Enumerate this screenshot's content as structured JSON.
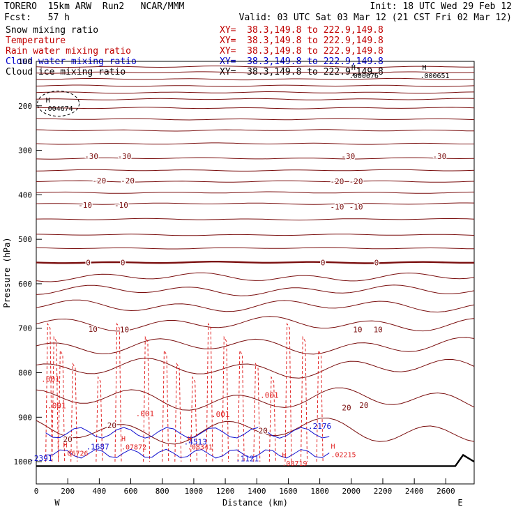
{
  "header": {
    "model": "TORERO  15km ARW  Run2   NCAR/MMM",
    "init": "Init: 18 UTC Wed 29 Feb 12",
    "fcst": "Fcst:   57 h",
    "valid": "Valid: 03 UTC Sat 03 Mar 12 (21 CST Fri 02 Mar 12)"
  },
  "fields": [
    {
      "name": "Snow mixing ratio",
      "xy": "XY=  38.3,149.8 to 222.9,149.8",
      "color": "#000000"
    },
    {
      "name": "Temperature",
      "xy": "XY=  38.3,149.8 to 222.9,149.8",
      "color": "#c00000"
    },
    {
      "name": "Rain water mixing ratio",
      "xy": "XY=  38.3,149.8 to 222.9,149.8",
      "color": "#c00000"
    },
    {
      "name": "Cloud water mixing ratio",
      "xy": "XY=  38.3,149.8 to 222.9,149.8",
      "color": "#0000cc"
    },
    {
      "name": "Cloud ice mixing ratio",
      "xy": "XY=  38.3,149.8 to 222.9,149.8",
      "color": "#000000"
    }
  ],
  "colors": {
    "temp": "#7a0e0e",
    "rain": "#e02020",
    "cloud": "#1010d0",
    "snow": "#000000"
  },
  "chart_data": {
    "type": "cross-section contour",
    "xlabel": "Distance (km)",
    "ylabel": "Pressure (hPa)",
    "xlim": [
      0,
      2780
    ],
    "ylim": [
      1050,
      100
    ],
    "x_ticks": [
      "0",
      "200",
      "400",
      "600",
      "800",
      "1000",
      "1200",
      "1400",
      "1600",
      "1800",
      "2000",
      "2200",
      "2400",
      "2600"
    ],
    "x_tick_values": [
      0,
      200,
      400,
      600,
      800,
      1000,
      1200,
      1400,
      1600,
      1800,
      2000,
      2200,
      2400,
      2600
    ],
    "y_ticks": [
      "100",
      "200",
      "300",
      "400",
      "500",
      "600",
      "700",
      "800",
      "900",
      "1000"
    ],
    "y_tick_values": [
      100,
      200,
      300,
      400,
      500,
      600,
      700,
      800,
      900,
      1000
    ],
    "west_label": "W",
    "east_label": "E",
    "temperature_labels": [
      {
        "text": "-30",
        "x": 350,
        "p": 313
      },
      {
        "text": "-30",
        "x": 560,
        "p": 313
      },
      {
        "text": "-30",
        "x": 1980,
        "p": 313
      },
      {
        "text": "-30",
        "x": 2560,
        "p": 313
      },
      {
        "text": "-20",
        "x": 400,
        "p": 368
      },
      {
        "text": "-20",
        "x": 580,
        "p": 368
      },
      {
        "text": "-20",
        "x": 1910,
        "p": 370
      },
      {
        "text": "-20",
        "x": 2030,
        "p": 370
      },
      {
        "text": "-10",
        "x": 310,
        "p": 423
      },
      {
        "text": "-10",
        "x": 540,
        "p": 423
      },
      {
        "text": "-10",
        "x": 1910,
        "p": 427
      },
      {
        "text": "-10",
        "x": 2030,
        "p": 427
      },
      {
        "text": "0",
        "x": 330,
        "p": 552
      },
      {
        "text": "0",
        "x": 550,
        "p": 552
      },
      {
        "text": "0",
        "x": 1820,
        "p": 552
      },
      {
        "text": "0",
        "x": 2160,
        "p": 552
      },
      {
        "text": "10",
        "x": 360,
        "p": 702
      },
      {
        "text": "10",
        "x": 560,
        "p": 703
      },
      {
        "text": "10",
        "x": 2040,
        "p": 703
      },
      {
        "text": "10",
        "x": 2170,
        "p": 703
      },
      {
        "text": "20",
        "x": 1970,
        "p": 878
      },
      {
        "text": "20",
        "x": 2080,
        "p": 873
      },
      {
        "text": "20",
        "x": 480,
        "p": 918
      },
      {
        "text": "20",
        "x": 1440,
        "p": 930
      },
      {
        "text": "20",
        "x": 200,
        "p": 950
      }
    ],
    "rain_labels": [
      {
        "text": ".001",
        "x": 90,
        "p": 814
      },
      {
        "text": ".001",
        "x": 130,
        "p": 874
      },
      {
        "text": ".001",
        "x": 690,
        "p": 892
      },
      {
        "text": ".001",
        "x": 1170,
        "p": 893
      },
      {
        "text": ".001",
        "x": 1480,
        "p": 850
      }
    ],
    "cloud_labels": [
      {
        "text": ".2176",
        "x": 1800,
        "p": 920
      },
      {
        "text": ".1687",
        "x": 390,
        "p": 966
      },
      {
        "text": ".4513",
        "x": 1010,
        "p": 955
      },
      {
        "text": ".1121",
        "x": 1340,
        "p": 993
      },
      {
        "text": ".2391",
        "x": 30,
        "p": 992
      }
    ],
    "maxima": [
      {
        "text": ".004674",
        "x": 140,
        "p": 205,
        "color": "snow"
      },
      {
        "text": ".000076",
        "x": 2080,
        "p": 131,
        "color": "snow"
      },
      {
        "text": ".000651",
        "x": 2530,
        "p": 131,
        "color": "snow"
      },
      {
        "text": ".06726",
        "x": 250,
        "p": 980,
        "color": "rain"
      },
      {
        "text": ".07872",
        "x": 620,
        "p": 966,
        "color": "rain"
      },
      {
        "text": ".08341",
        "x": 1040,
        "p": 966,
        "color": "rain"
      },
      {
        "text": ".08719",
        "x": 1640,
        "p": 1003,
        "color": "rain"
      },
      {
        "text": ".02215",
        "x": 1950,
        "p": 983,
        "color": "rain"
      }
    ]
  }
}
